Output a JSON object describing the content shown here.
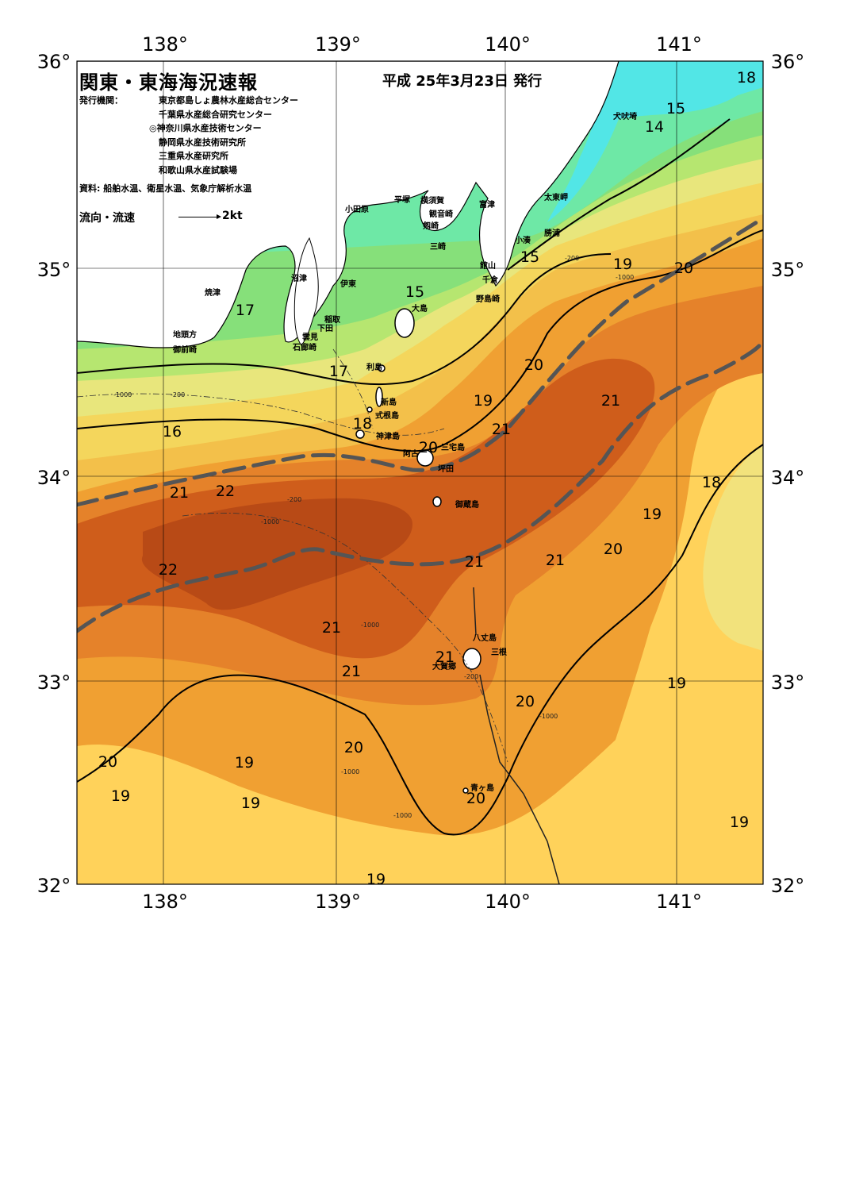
{
  "title": "関東・東海海況速報",
  "issue_date": "平成 25年3月23日 発行",
  "issuer_label": "発行機関：",
  "issuers": [
    "東京都島しょ農林水産総合センター",
    "千葉県水産総合研究センター",
    "◎神奈川県水産技術センター",
    "静岡県水産技術研究所",
    "三重県水産研究所",
    "和歌山県水産試験場"
  ],
  "source": "資料: 船舶水温、衛星水温、気象庁解析水温",
  "current_legend": {
    "label": "流向・流速",
    "unit": "2kt"
  },
  "axes": {
    "lon_ticks": [
      "138°",
      "139°",
      "140°",
      "141°"
    ],
    "lat_ticks": [
      "36°",
      "35°",
      "34°",
      "33°",
      "32°"
    ]
  },
  "place_names": [
    "犬吠埼",
    "太東岬",
    "勝浦",
    "小湊",
    "富津",
    "館山",
    "千倉",
    "野島崎",
    "平塚",
    "横須賀",
    "観音崎",
    "剱崎",
    "三崎",
    "小田原",
    "沼津",
    "伊東",
    "焼津",
    "稲取",
    "下田",
    "雲見",
    "石廊崎",
    "地頭方",
    "御前崎",
    "大島",
    "利島",
    "新島",
    "式根島",
    "神津島",
    "三宅島",
    "阿古",
    "坪田",
    "御蔵島",
    "八丈島",
    "三根",
    "大賀郷",
    "青ヶ島"
  ],
  "temperature_labels": [
    "18",
    "15",
    "14",
    "15",
    "19",
    "20",
    "15",
    "17",
    "17",
    "20",
    "19",
    "21",
    "21",
    "18",
    "16",
    "20",
    "21",
    "22",
    "18",
    "19",
    "22",
    "21",
    "20",
    "21",
    "21",
    "21",
    "21",
    "19",
    "20",
    "20",
    "20",
    "19",
    "19",
    "19",
    "20",
    "19",
    "19"
  ],
  "depth_labels": [
    "-1000",
    "-200"
  ],
  "colors": {
    "sst_14": "#52e6e6",
    "sst_15": "#6ee8a6",
    "sst_16": "#86e07a",
    "sst_17": "#b6e670",
    "sst_18": "#e9e77a",
    "sst_19": "#ffd25a",
    "sst_20": "#f7ae3a",
    "sst_21": "#e8832a",
    "sst_22": "#cf5d1b",
    "sst_23": "#b84a16",
    "land": "#ffffff",
    "kuroshio_axis": "#555555"
  }
}
